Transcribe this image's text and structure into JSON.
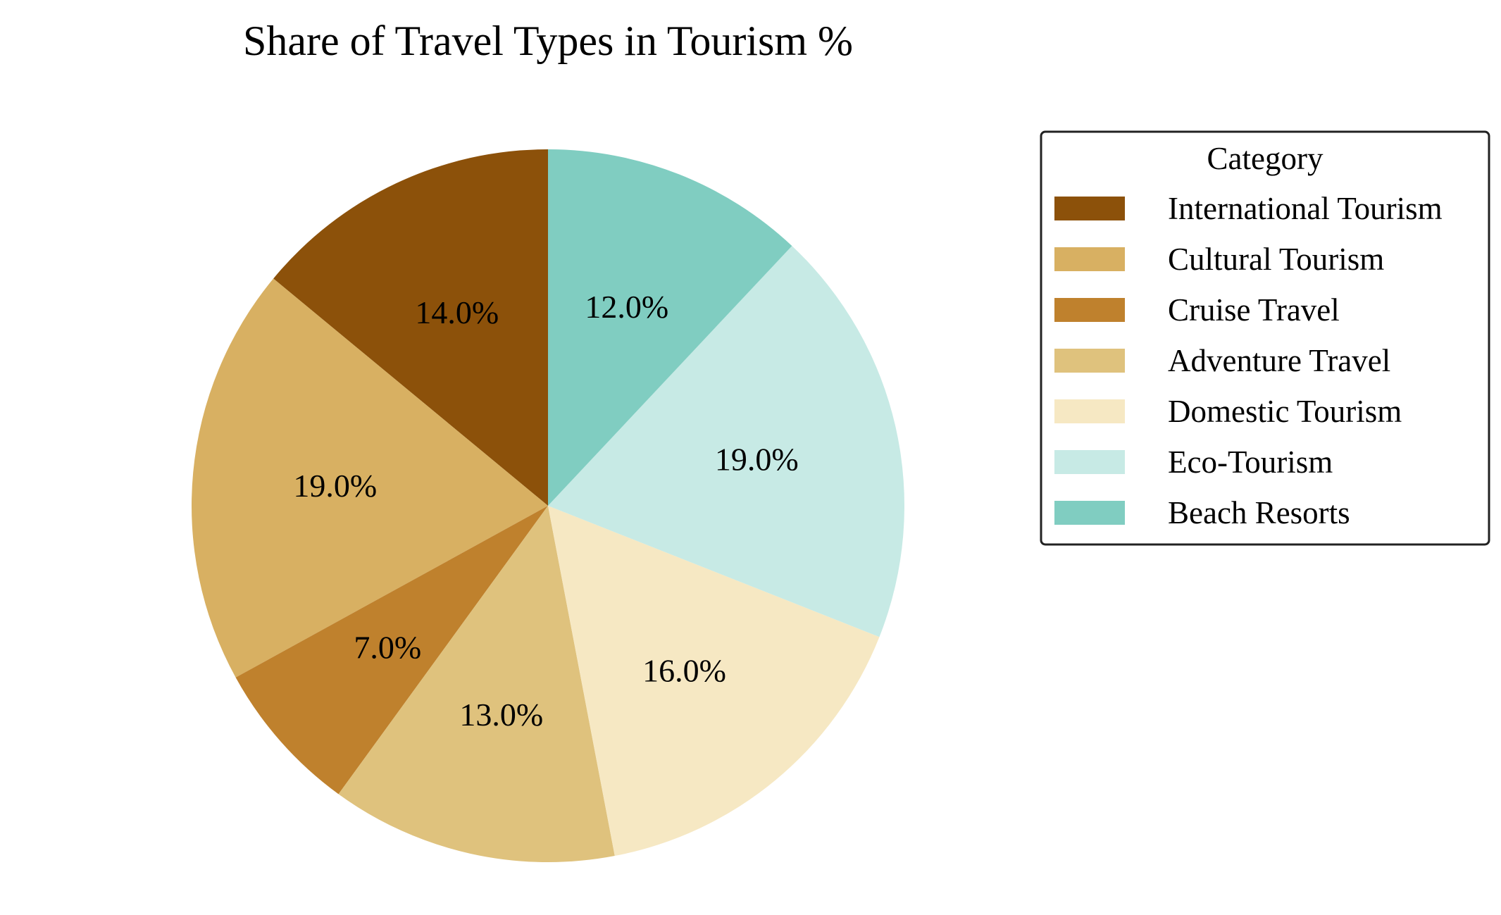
{
  "chart_data": {
    "type": "pie",
    "title": "Share of Travel Types in Tourism %",
    "legend_title": "Category",
    "legend_position": "right",
    "start_angle_deg": 90,
    "direction": "counterclockwise",
    "label_format": "percent-1-decimal",
    "categories": [
      "International Tourism",
      "Cultural Tourism",
      "Cruise Travel",
      "Adventure Travel",
      "Domestic Tourism",
      "Eco-Tourism",
      "Beach Resorts"
    ],
    "values": [
      14.0,
      19.0,
      7.0,
      13.0,
      16.0,
      19.0,
      12.0
    ],
    "labels": [
      "14.0%",
      "19.0%",
      "7.0%",
      "13.0%",
      "16.0%",
      "19.0%",
      "12.0%"
    ],
    "colors": [
      "#8c510a",
      "#d8b062",
      "#bf812d",
      "#dfc27d",
      "#f6e8c3",
      "#c7eae5",
      "#80cdc1"
    ]
  }
}
